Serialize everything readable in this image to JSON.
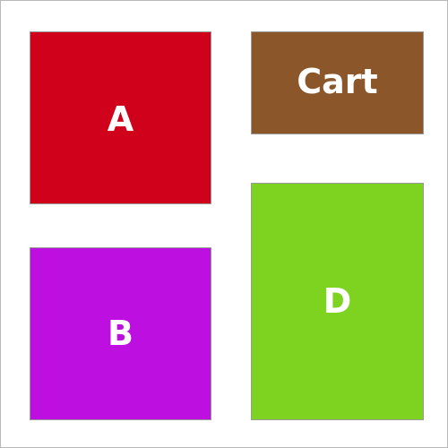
{
  "tiles": {
    "a": {
      "label": "A",
      "color": "#d0021b"
    },
    "cart": {
      "label": "Cart",
      "color": "#8b572a"
    },
    "b": {
      "label": "B",
      "color": "#bd10e0"
    },
    "d": {
      "label": "D",
      "color": "#7ed321"
    }
  }
}
